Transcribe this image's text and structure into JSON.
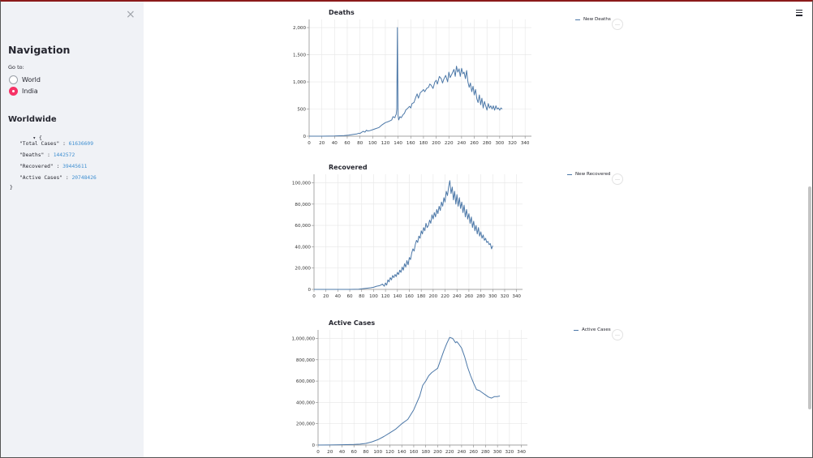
{
  "sidebar": {
    "close_icon": "×",
    "title": "Navigation",
    "goto_label": "Go to:",
    "options": [
      {
        "label": "World",
        "checked": false
      },
      {
        "label": "India",
        "checked": true
      }
    ],
    "worldwide_title": "Worldwide",
    "json_open": "{",
    "json_close": "}",
    "json_items": [
      {
        "key": "\"Total Cases\"",
        "sep": " : ",
        "value": "61636609"
      },
      {
        "key": "\"Deaths\"",
        "sep": " : ",
        "value": "1442572"
      },
      {
        "key": "\"Recovered\"",
        "sep": " : ",
        "value": "39445611"
      },
      {
        "key": "\"Active Cases\"",
        "sep": " : ",
        "value": "20748426"
      }
    ]
  },
  "colors": {
    "line": "#4c78a8",
    "radio_accent": "#f63366"
  },
  "chart_data": [
    {
      "type": "line",
      "title": "Deaths",
      "legend": "New Deaths",
      "x_ticks": [
        0,
        20,
        40,
        60,
        80,
        100,
        120,
        140,
        160,
        180,
        200,
        220,
        240,
        260,
        280,
        300,
        320,
        340
      ],
      "y_ticks": [
        0,
        500,
        1000,
        1500,
        2000
      ],
      "y_tick_labels": [
        "0",
        "500",
        "1,000",
        "1,500",
        "2,000"
      ],
      "xlim": [
        0,
        350
      ],
      "ylim": [
        0,
        2150
      ],
      "series": [
        {
          "x": [
            0,
            20,
            40,
            55,
            62,
            70,
            75,
            78,
            80,
            85,
            88,
            90,
            92,
            95,
            100,
            105,
            110,
            115,
            120,
            125,
            130,
            132,
            135,
            136,
            137,
            138,
            139,
            140,
            141,
            143,
            145,
            148,
            150,
            152,
            155,
            158,
            160,
            162,
            165,
            168,
            170,
            172,
            175,
            178,
            180,
            182,
            185,
            188,
            190,
            192,
            195,
            198,
            200,
            202,
            205,
            208,
            210,
            212,
            215,
            218,
            220,
            222,
            225,
            228,
            230,
            232,
            234,
            236,
            238,
            240,
            242,
            244,
            246,
            248,
            250,
            252,
            254,
            256,
            258,
            260,
            262,
            264,
            266,
            268,
            270,
            272,
            274,
            276,
            278,
            280,
            282,
            284,
            286,
            288,
            290,
            292,
            294,
            296,
            298,
            300,
            302,
            304
          ],
          "y": [
            0,
            0,
            3,
            10,
            18,
            35,
            40,
            55,
            50,
            90,
            75,
            110,
            95,
            100,
            120,
            140,
            160,
            210,
            250,
            270,
            300,
            360,
            340,
            380,
            400,
            500,
            2000,
            380,
            300,
            360,
            340,
            400,
            420,
            480,
            510,
            550,
            520,
            600,
            620,
            720,
            780,
            700,
            800,
            830,
            860,
            820,
            880,
            900,
            960,
            940,
            880,
            1000,
            1030,
            960,
            1100,
            1060,
            980,
            1050,
            1120,
            1000,
            1180,
            1080,
            1150,
            1230,
            1100,
            1290,
            1180,
            1240,
            1100,
            1250,
            1150,
            1180,
            1060,
            1210,
            1000,
            900,
            980,
            820,
            920,
            760,
            860,
            690,
            620,
            760,
            580,
            700,
            520,
            640,
            560,
            480,
            600,
            520,
            560,
            500,
            560,
            480,
            560,
            500,
            520,
            480,
            520,
            500
          ]
        }
      ]
    },
    {
      "type": "line",
      "title": "Recovered",
      "legend": "New Recovered",
      "x_ticks": [
        0,
        20,
        40,
        60,
        80,
        100,
        120,
        140,
        160,
        180,
        200,
        220,
        240,
        260,
        280,
        300,
        320,
        340
      ],
      "y_ticks": [
        0,
        20000,
        40000,
        60000,
        80000,
        100000
      ],
      "y_tick_labels": [
        "0",
        "20,000",
        "40,000",
        "60,000",
        "80,000",
        "100,000"
      ],
      "xlim": [
        0,
        350
      ],
      "ylim": [
        0,
        108000
      ],
      "series": [
        {
          "x": [
            0,
            30,
            60,
            75,
            85,
            95,
            100,
            105,
            110,
            115,
            118,
            120,
            122,
            124,
            126,
            128,
            130,
            132,
            134,
            136,
            138,
            140,
            142,
            144,
            146,
            148,
            150,
            152,
            154,
            156,
            158,
            160,
            162,
            164,
            166,
            168,
            170,
            172,
            174,
            176,
            178,
            180,
            182,
            184,
            186,
            188,
            190,
            192,
            194,
            196,
            198,
            200,
            202,
            204,
            206,
            208,
            210,
            212,
            214,
            216,
            218,
            220,
            222,
            224,
            226,
            228,
            230,
            232,
            234,
            236,
            238,
            240,
            242,
            244,
            246,
            248,
            250,
            252,
            254,
            256,
            258,
            260,
            262,
            264,
            266,
            268,
            270,
            272,
            274,
            276,
            278,
            280,
            282,
            284,
            286,
            288,
            290,
            292,
            294,
            296,
            298,
            300
          ],
          "y": [
            0,
            0,
            0,
            200,
            800,
            1500,
            2000,
            3000,
            3500,
            5000,
            3000,
            6000,
            4000,
            9000,
            7000,
            11000,
            9000,
            13000,
            11000,
            14000,
            12000,
            16000,
            14000,
            18000,
            16000,
            21000,
            18000,
            24000,
            21000,
            27000,
            23000,
            30000,
            28000,
            34000,
            38000,
            36000,
            42000,
            46000,
            44000,
            50000,
            48000,
            55000,
            52000,
            58000,
            55000,
            62000,
            58000,
            60000,
            65000,
            62000,
            70000,
            66000,
            72000,
            68000,
            75000,
            71000,
            78000,
            74000,
            82000,
            78000,
            86000,
            82000,
            92000,
            88000,
            96000,
            102000,
            90000,
            96000,
            84000,
            92000,
            80000,
            89000,
            78000,
            86000,
            76000,
            82000,
            72000,
            79000,
            68000,
            75000,
            66000,
            71000,
            62000,
            68000,
            58000,
            64000,
            55000,
            60000,
            52000,
            58000,
            50000,
            54000,
            48000,
            51000,
            46000,
            48000,
            44000,
            45000,
            42000,
            43000,
            38000,
            41000
          ]
        }
      ]
    },
    {
      "type": "line",
      "title": "Active Cases",
      "legend": "Active Cases",
      "x_ticks": [
        0,
        20,
        40,
        60,
        80,
        100,
        120,
        140,
        160,
        180,
        200,
        220,
        240,
        260,
        280,
        300,
        320,
        340
      ],
      "y_ticks": [
        0,
        200000,
        400000,
        600000,
        800000,
        1000000
      ],
      "y_tick_labels": [
        "0",
        "200,000",
        "400,000",
        "600,000",
        "800,000",
        "1,000,000"
      ],
      "xlim": [
        0,
        350
      ],
      "ylim": [
        0,
        1080000
      ],
      "series": [
        {
          "x": [
            0,
            20,
            40,
            60,
            70,
            80,
            90,
            100,
            110,
            120,
            130,
            140,
            150,
            160,
            170,
            175,
            180,
            185,
            190,
            195,
            200,
            205,
            210,
            215,
            220,
            225,
            230,
            232,
            235,
            240,
            245,
            250,
            255,
            260,
            265,
            270,
            275,
            280,
            285,
            290,
            295,
            300,
            304
          ],
          "y": [
            0,
            1000,
            3000,
            5000,
            8000,
            15000,
            30000,
            50000,
            80000,
            115000,
            150000,
            200000,
            240000,
            330000,
            460000,
            560000,
            600000,
            650000,
            680000,
            700000,
            720000,
            800000,
            880000,
            950000,
            1010000,
            1000000,
            960000,
            970000,
            950000,
            910000,
            830000,
            730000,
            650000,
            580000,
            520000,
            510000,
            490000,
            470000,
            450000,
            440000,
            455000,
            455000,
            460000
          ]
        }
      ]
    }
  ]
}
